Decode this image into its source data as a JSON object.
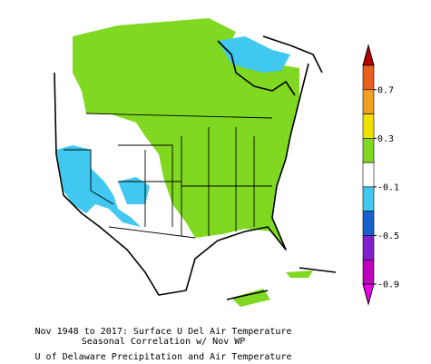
{
  "caption": {
    "lines": [
      "Nov 1948 to 2017: Surface U Del Air Temperature",
      "Seasonal Correlation w/ Nov WP",
      "U of Delaware Precipitation and Air Temperature"
    ]
  },
  "colorbar": {
    "labels": [
      "0.7",
      "0.3",
      "-0.1",
      "-0.5",
      "-0.9"
    ],
    "colors": [
      "#b80000",
      "#e8601a",
      "#f0a020",
      "#f0e000",
      "#80d820",
      "#ffffff",
      "#40c8f0",
      "#1860d0",
      "#8020d0",
      "#c000c0",
      "#f000f0"
    ]
  }
}
